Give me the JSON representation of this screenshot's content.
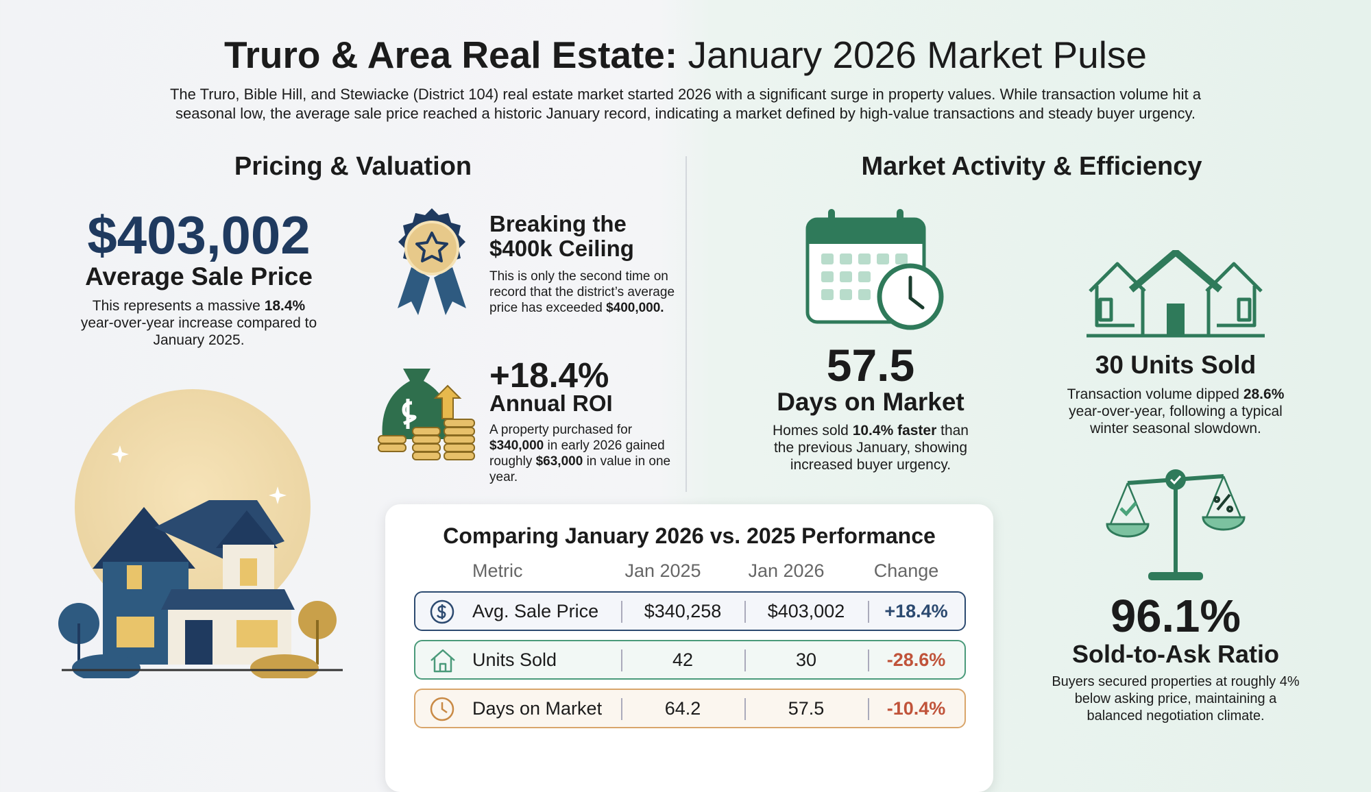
{
  "header": {
    "title_bold": "Truro & Area Real Estate:",
    "title_rest": "January 2026 Market Pulse",
    "intro": "The Truro, Bible Hill, and Stewiacke (District 104) real estate market started 2026 with a significant surge in property values. While transaction volume hit a seasonal low, the average sale price reached a historic January record, indicating a market defined by high-value transactions and steady buyer urgency."
  },
  "pricing": {
    "heading": "Pricing & Valuation",
    "avg_price": {
      "value": "$403,002",
      "label": "Average Sale Price",
      "note": [
        "This represents a massive ",
        "18.4%",
        " year-over-year increase compared to January 2025."
      ]
    },
    "ceiling": {
      "title": [
        "Breaking the",
        "$400k Ceiling"
      ],
      "note": [
        "This is only the second time on record that the district’s average price has exceeded ",
        "$400,000."
      ]
    },
    "roi": {
      "value": "+18.4%",
      "label": "Annual ROI",
      "note": [
        "A property purchased for ",
        "$340,000",
        " in early 2026 gained roughly ",
        "$63,000",
        " in value in one year."
      ]
    }
  },
  "activity": {
    "heading": "Market Activity & Efficiency",
    "days": {
      "value": "57.5",
      "label": "Days on Market",
      "note": [
        "Homes sold ",
        "10.4% faster",
        " than the previous January, showing increased buyer urgency."
      ]
    },
    "units": {
      "label": "30 Units Sold",
      "note": [
        "Transaction volume dipped ",
        "28.6%",
        " year-over-year, following a typical winter seasonal slowdown."
      ]
    },
    "ratio": {
      "value": "96.1%",
      "label": "Sold-to-Ask Ratio",
      "note": [
        "Buyers secured properties at roughly 4% below asking price, maintaining a balanced negotiation climate."
      ]
    }
  },
  "table": {
    "title": "Comparing January 2026 vs. 2025 Performance",
    "columns": [
      "Metric",
      "Jan 2025",
      "Jan 2026",
      "Change"
    ],
    "rows": [
      [
        "Avg. Sale Price",
        "$340,258",
        "$403,002",
        "+18.4%"
      ],
      [
        "Units Sold",
        "42",
        "30",
        "-28.6%"
      ],
      [
        "Days on Market",
        "64.2",
        "57.5",
        "-10.4%"
      ]
    ]
  }
}
